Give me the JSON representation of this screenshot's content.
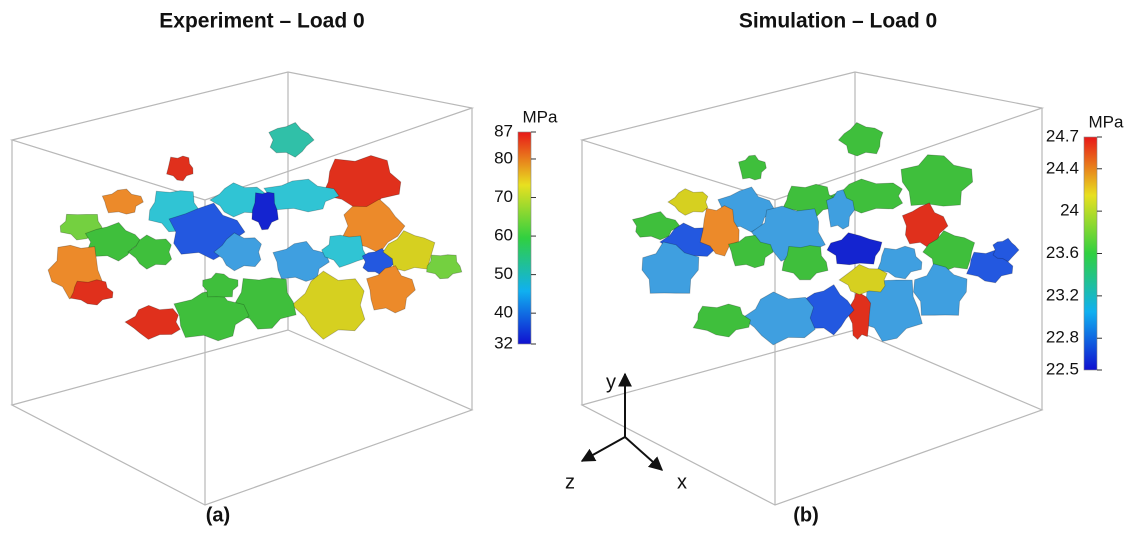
{
  "panels": [
    {
      "title": "Experiment – Load 0",
      "label": "(a)",
      "colorbar": {
        "unit": "MPa",
        "lim": [
          32,
          87
        ],
        "ticks": [
          32,
          40,
          50,
          60,
          70,
          80,
          87
        ]
      }
    },
    {
      "title": "Simulation – Load 0",
      "label": "(b)",
      "colorbar": {
        "unit": "MPa",
        "lim": [
          22.5,
          24.7
        ],
        "ticks": [
          22.5,
          22.8,
          23.2,
          23.6,
          24,
          24.4,
          24.7
        ]
      }
    }
  ],
  "axes_triad": {
    "y": "y",
    "z": "z",
    "x": "x"
  }
}
